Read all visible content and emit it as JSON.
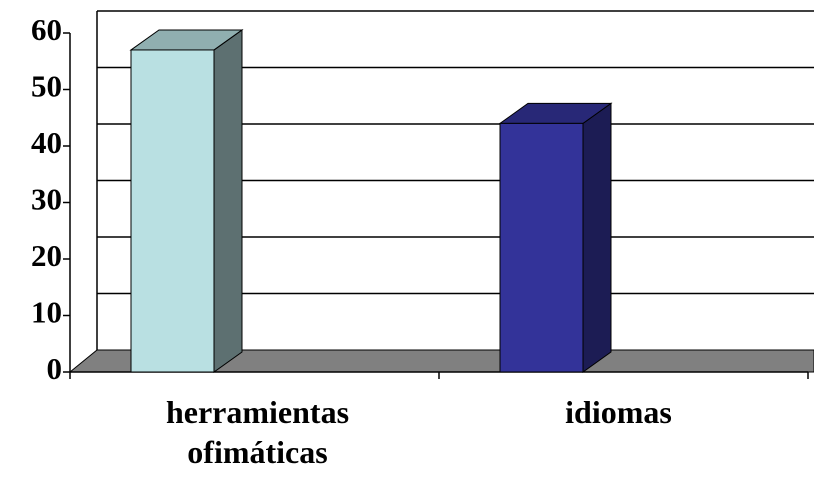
{
  "chart_data": {
    "type": "bar3d",
    "categories": [
      "herramientas ofimáticas",
      "idiomas"
    ],
    "values": [
      57,
      44
    ],
    "colors": [
      "#b9e0e2",
      "#333399"
    ],
    "ylim": [
      0,
      60
    ],
    "yticks": [
      0,
      10,
      20,
      30,
      40,
      50,
      60
    ],
    "grid": true
  }
}
